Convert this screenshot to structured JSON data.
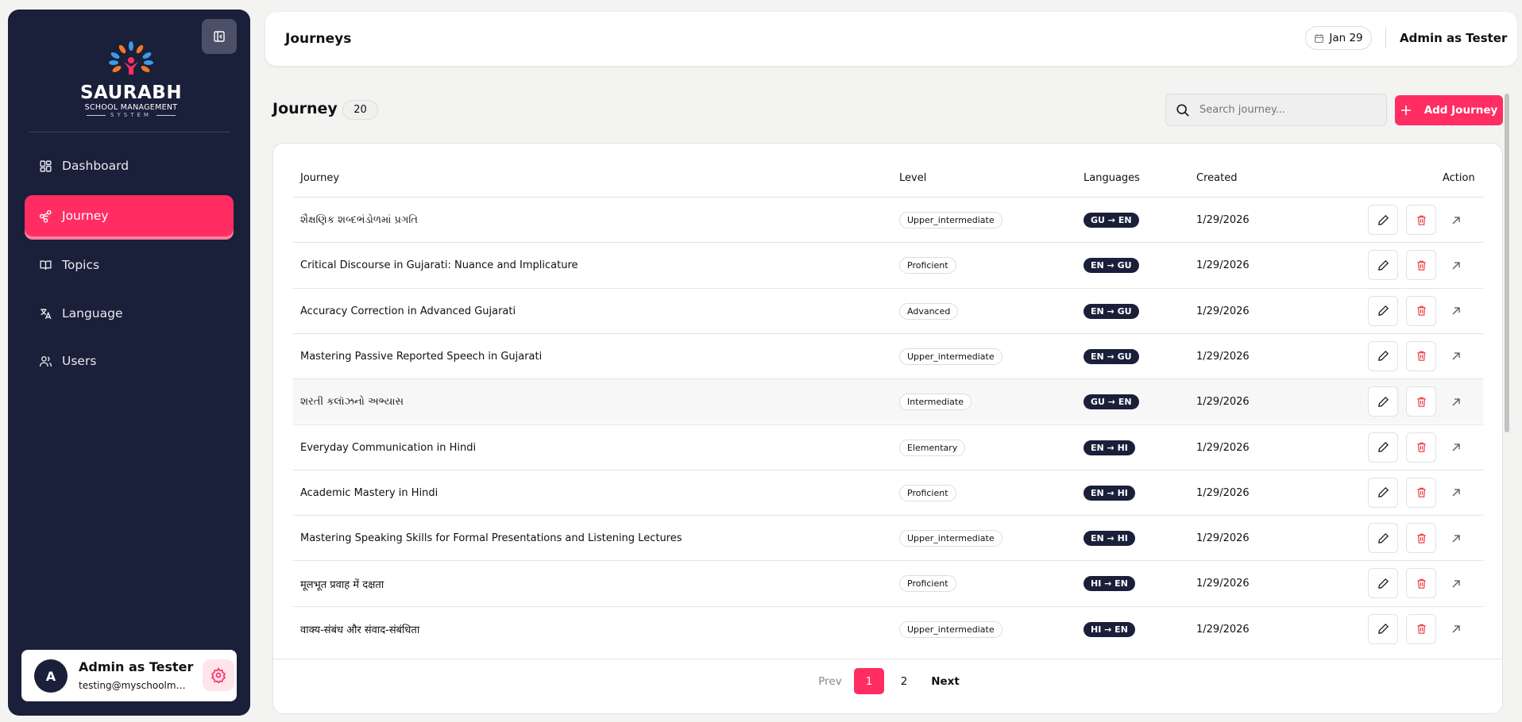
{
  "sidebar": {
    "logo": {
      "name": "SAURABH",
      "line2": "SCHOOL MANAGEMENT",
      "line3": "SYSTEM"
    },
    "items": [
      {
        "label": "Dashboard",
        "icon": "grid-icon",
        "active": false
      },
      {
        "label": "Journey",
        "icon": "route-icon",
        "active": true
      },
      {
        "label": "Topics",
        "icon": "book-icon",
        "active": false
      },
      {
        "label": "Language",
        "icon": "translate-icon",
        "active": false
      },
      {
        "label": "Users",
        "icon": "users-icon",
        "active": false
      }
    ],
    "user": {
      "initial": "A",
      "name": "Admin as Tester",
      "email": "testing@myschoolma..."
    }
  },
  "header": {
    "title": "Journeys",
    "date": "Jan 29",
    "user": "Admin as Tester"
  },
  "page": {
    "title": "Journey",
    "count": "20",
    "search_placeholder": "Search journey...",
    "add_label": "Add Journey"
  },
  "table": {
    "columns": [
      "Journey",
      "Level",
      "Languages",
      "Created",
      "Action"
    ],
    "rows": [
      {
        "journey": "શૈક્ષણિક શબ્દભંડોળમાં પ્રગતિ",
        "level": "Upper_intermediate",
        "languages": "GU → EN",
        "created": "1/29/2026"
      },
      {
        "journey": "Critical Discourse in Gujarati: Nuance and Implicature",
        "level": "Proficient",
        "languages": "EN → GU",
        "created": "1/29/2026"
      },
      {
        "journey": "Accuracy Correction in Advanced Gujarati",
        "level": "Advanced",
        "languages": "EN → GU",
        "created": "1/29/2026"
      },
      {
        "journey": "Mastering Passive Reported Speech in Gujarati",
        "level": "Upper_intermediate",
        "languages": "EN → GU",
        "created": "1/29/2026"
      },
      {
        "journey": "શરતી કલૉઝનો અભ્યાસ",
        "level": "Intermediate",
        "languages": "GU → EN",
        "created": "1/29/2026",
        "highlighted": true
      },
      {
        "journey": "Everyday Communication in Hindi",
        "level": "Elementary",
        "languages": "EN → HI",
        "created": "1/29/2026"
      },
      {
        "journey": "Academic Mastery in Hindi",
        "level": "Proficient",
        "languages": "EN → HI",
        "created": "1/29/2026"
      },
      {
        "journey": "Mastering Speaking Skills for Formal Presentations and Listening Lectures",
        "level": "Upper_intermediate",
        "languages": "EN → HI",
        "created": "1/29/2026"
      },
      {
        "journey": "मूलभूत प्रवाह में दक्षता",
        "level": "Proficient",
        "languages": "HI → EN",
        "created": "1/29/2026"
      },
      {
        "journey": "वाक्य-संबंध और संवाद-संबंधिता",
        "level": "Upper_intermediate",
        "languages": "HI → EN",
        "created": "1/29/2026"
      }
    ]
  },
  "pagination": {
    "prev": "Prev",
    "pages": [
      "1",
      "2"
    ],
    "current": "1",
    "next": "Next"
  },
  "colors": {
    "sidebar": "#1a1f3a",
    "accent": "#ff2d62",
    "delete": "#ef4444"
  }
}
